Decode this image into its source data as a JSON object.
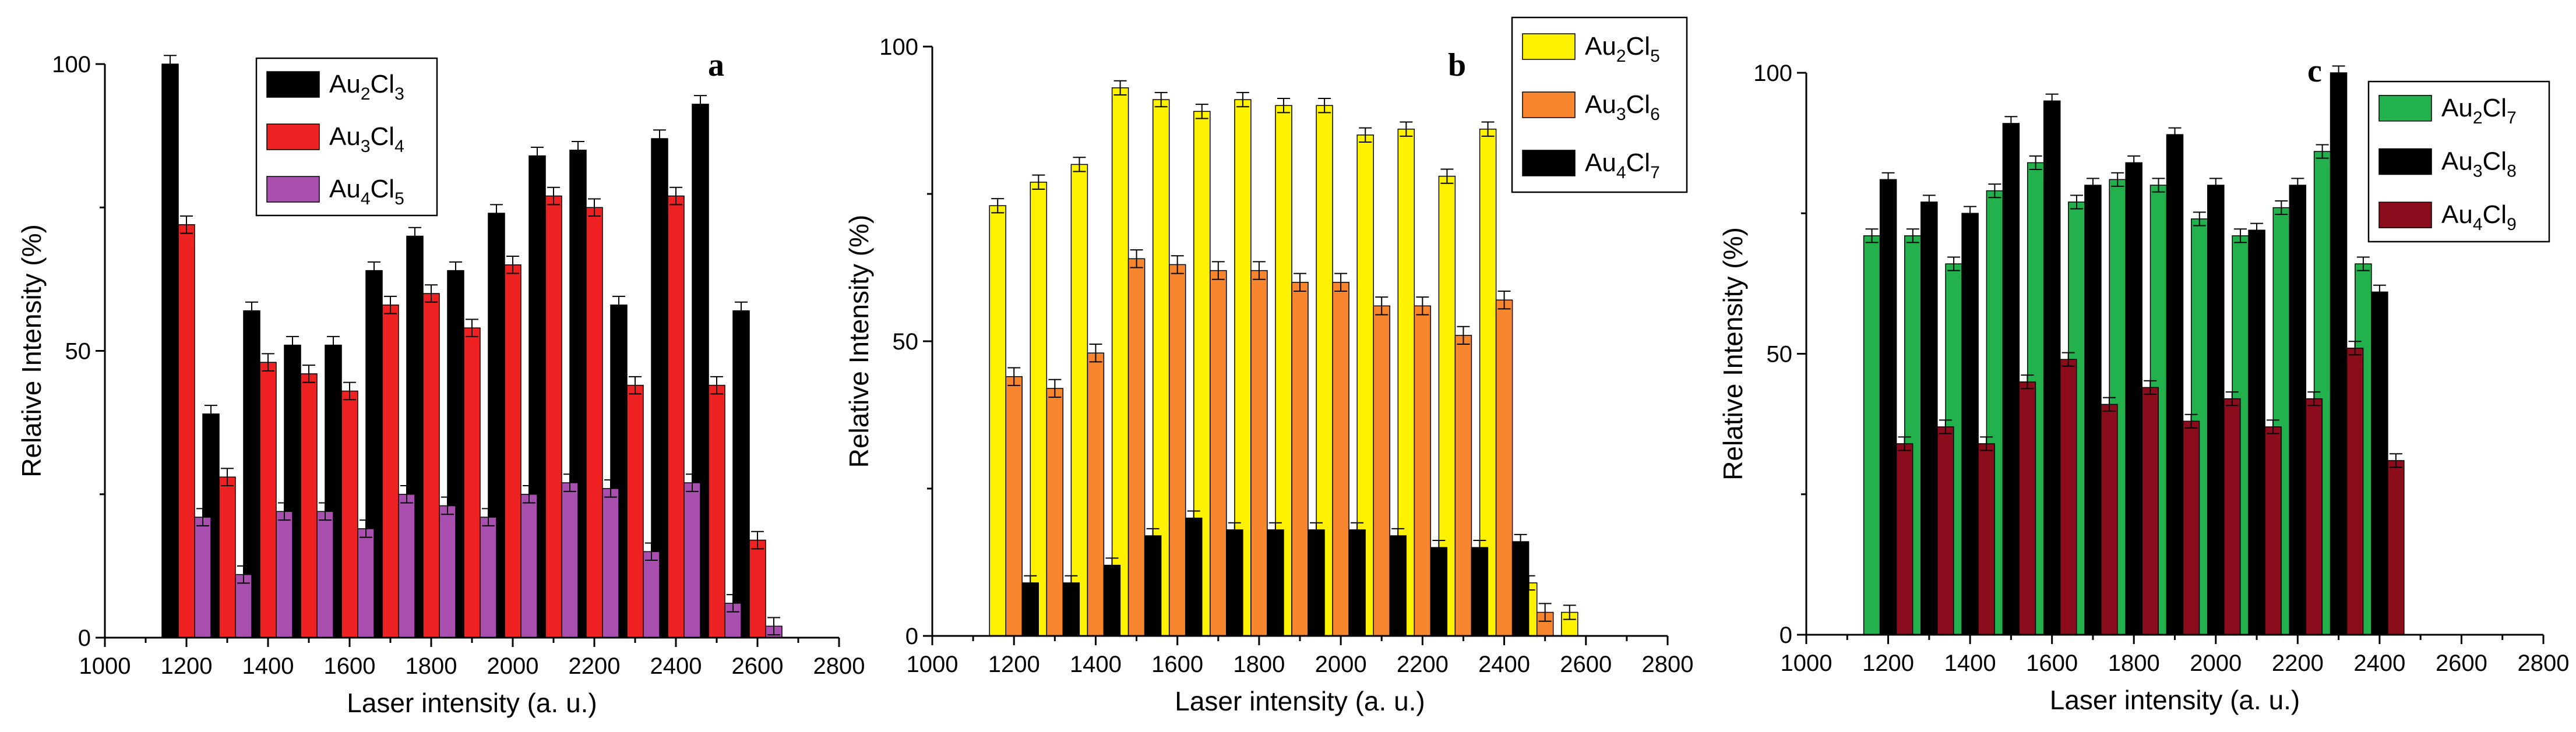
{
  "chart_data": [
    {
      "type": "bar",
      "panel": "a",
      "xlabel": "Laser intensity (a. u.)",
      "ylabel": "Relative Intensity (%)",
      "xlim": [
        1000,
        2800
      ],
      "ylim": [
        0,
        100
      ],
      "x_ticks": [
        1000,
        1200,
        1400,
        1600,
        1800,
        2000,
        2200,
        2400,
        2600,
        2800
      ],
      "y_ticks": [
        0,
        50,
        100
      ],
      "legend_position": "top-left",
      "x": [
        1200,
        1300,
        1400,
        1500,
        1600,
        1700,
        1800,
        1900,
        2000,
        2100,
        2200,
        2300,
        2400,
        2500,
        2600
      ],
      "series": [
        {
          "name": "Au2Cl3",
          "label_base": "Au",
          "label_n1": "2",
          "label_mid": "Cl",
          "label_n2": "3",
          "color": "#000000",
          "values": [
            100,
            39,
            57,
            51,
            51,
            64,
            70,
            64,
            74,
            84,
            85,
            58,
            87,
            93,
            57
          ],
          "errors": [
            1.5,
            1.5,
            1.5,
            1.5,
            1.5,
            1.5,
            1.5,
            1.5,
            1.5,
            1.5,
            1.5,
            1.5,
            1.5,
            1.5,
            1.5
          ]
        },
        {
          "name": "Au3Cl4",
          "label_base": "Au",
          "label_n1": "3",
          "label_mid": "Cl",
          "label_n2": "4",
          "color": "#ee2223",
          "values": [
            72,
            28,
            48,
            46,
            43,
            58,
            60,
            54,
            65,
            77,
            75,
            44,
            77,
            44,
            17
          ],
          "errors": [
            1.5,
            1.5,
            1.5,
            1.5,
            1.5,
            1.5,
            1.5,
            1.5,
            1.5,
            1.5,
            1.5,
            1.5,
            1.5,
            1.5,
            1.5
          ]
        },
        {
          "name": "Au4Cl5",
          "label_base": "Au",
          "label_n1": "4",
          "label_mid": "Cl",
          "label_n2": "5",
          "color": "#a84fb0",
          "values": [
            21,
            11,
            22,
            22,
            19,
            25,
            23,
            21,
            25,
            27,
            26,
            15,
            27,
            6,
            2
          ],
          "errors": [
            1.5,
            1.5,
            1.5,
            1.5,
            1.5,
            1.5,
            1.5,
            1.5,
            1.5,
            1.5,
            1.5,
            1.5,
            1.5,
            1.5,
            1.5
          ]
        }
      ]
    },
    {
      "type": "bar",
      "panel": "b",
      "xlabel": "Laser intensity (a. u.)",
      "ylabel": "Relative Intensity (%)",
      "xlim": [
        1000,
        2800
      ],
      "ylim": [
        0,
        100
      ],
      "x_ticks": [
        1000,
        1200,
        1400,
        1600,
        1800,
        2000,
        2200,
        2400,
        2600,
        2800
      ],
      "y_ticks": [
        0,
        50,
        100
      ],
      "legend_position": "top-right",
      "x": [
        1200,
        1300,
        1400,
        1500,
        1600,
        1700,
        1800,
        1900,
        2000,
        2100,
        2200,
        2300,
        2400,
        2500,
        2600
      ],
      "series": [
        {
          "name": "Au2Cl5",
          "label_base": "Au",
          "label_n1": "2",
          "label_mid": "Cl",
          "label_n2": "5",
          "color": "#fff200",
          "values": [
            73,
            77,
            80,
            93,
            91,
            89,
            91,
            90,
            90,
            85,
            86,
            78,
            86,
            9,
            4
          ],
          "errors": [
            1.2,
            1.2,
            1.2,
            1.2,
            1.2,
            1.2,
            1.2,
            1.2,
            1.2,
            1.2,
            1.2,
            1.2,
            1.2,
            1.2,
            1.2
          ]
        },
        {
          "name": "Au3Cl6",
          "label_base": "Au",
          "label_n1": "3",
          "label_mid": "Cl",
          "label_n2": "6",
          "color": "#f7862f",
          "values": [
            44,
            42,
            48,
            64,
            63,
            62,
            62,
            60,
            60,
            56,
            56,
            51,
            57,
            4,
            0
          ],
          "errors": [
            1.5,
            1.5,
            1.5,
            1.5,
            1.5,
            1.5,
            1.5,
            1.5,
            1.5,
            1.5,
            1.5,
            1.5,
            1.5,
            1.5,
            0
          ]
        },
        {
          "name": "Au4Cl7",
          "label_base": "Au",
          "label_n1": "4",
          "label_mid": "Cl",
          "label_n2": "7",
          "color": "#000000",
          "values": [
            9,
            9,
            12,
            17,
            20,
            18,
            18,
            18,
            18,
            17,
            15,
            15,
            16,
            0,
            0
          ],
          "errors": [
            1.2,
            1.2,
            1.2,
            1.2,
            1.2,
            1.2,
            1.2,
            1.2,
            1.2,
            1.2,
            1.2,
            1.2,
            1.2,
            0,
            0
          ]
        }
      ]
    },
    {
      "type": "bar",
      "panel": "c",
      "xlabel": "Laser intensity (a. u.)",
      "ylabel": "Relative Intensity (%)",
      "xlim": [
        1000,
        2800
      ],
      "ylim": [
        0,
        100
      ],
      "x_ticks": [
        1000,
        1200,
        1400,
        1600,
        1800,
        2000,
        2200,
        2400,
        2600,
        2800
      ],
      "y_ticks": [
        0,
        50,
        100
      ],
      "legend_position": "top-right",
      "x": [
        1200,
        1300,
        1400,
        1500,
        1600,
        1700,
        1800,
        1900,
        2000,
        2100,
        2200,
        2300,
        2400
      ],
      "series": [
        {
          "name": "Au2Cl7",
          "label_base": "Au",
          "label_n1": "2",
          "label_mid": "Cl",
          "label_n2": "7",
          "color": "#22b14c",
          "values": [
            71,
            71,
            66,
            79,
            84,
            77,
            81,
            80,
            74,
            71,
            76,
            86,
            66
          ],
          "errors": [
            1.2,
            1.2,
            1.2,
            1.2,
            1.2,
            1.2,
            1.2,
            1.2,
            1.2,
            1.2,
            1.2,
            1.2,
            1.2
          ]
        },
        {
          "name": "Au3Cl8",
          "label_base": "Au",
          "label_n1": "3",
          "label_mid": "Cl",
          "label_n2": "8",
          "color": "#000000",
          "values": [
            81,
            77,
            75,
            91,
            95,
            80,
            84,
            89,
            80,
            72,
            80,
            100,
            61
          ],
          "errors": [
            1.2,
            1.2,
            1.2,
            1.2,
            1.2,
            1.2,
            1.2,
            1.2,
            1.2,
            1.2,
            1.2,
            1.2,
            1.2
          ]
        },
        {
          "name": "Au4Cl9",
          "label_base": "Au",
          "label_n1": "4",
          "label_mid": "Cl",
          "label_n2": "9",
          "color": "#8b0d1c",
          "values": [
            34,
            37,
            34,
            45,
            49,
            41,
            44,
            38,
            42,
            37,
            42,
            51,
            31
          ],
          "errors": [
            1.2,
            1.2,
            1.2,
            1.2,
            1.2,
            1.2,
            1.2,
            1.2,
            1.2,
            1.2,
            1.2,
            1.2,
            1.2
          ]
        }
      ]
    }
  ]
}
